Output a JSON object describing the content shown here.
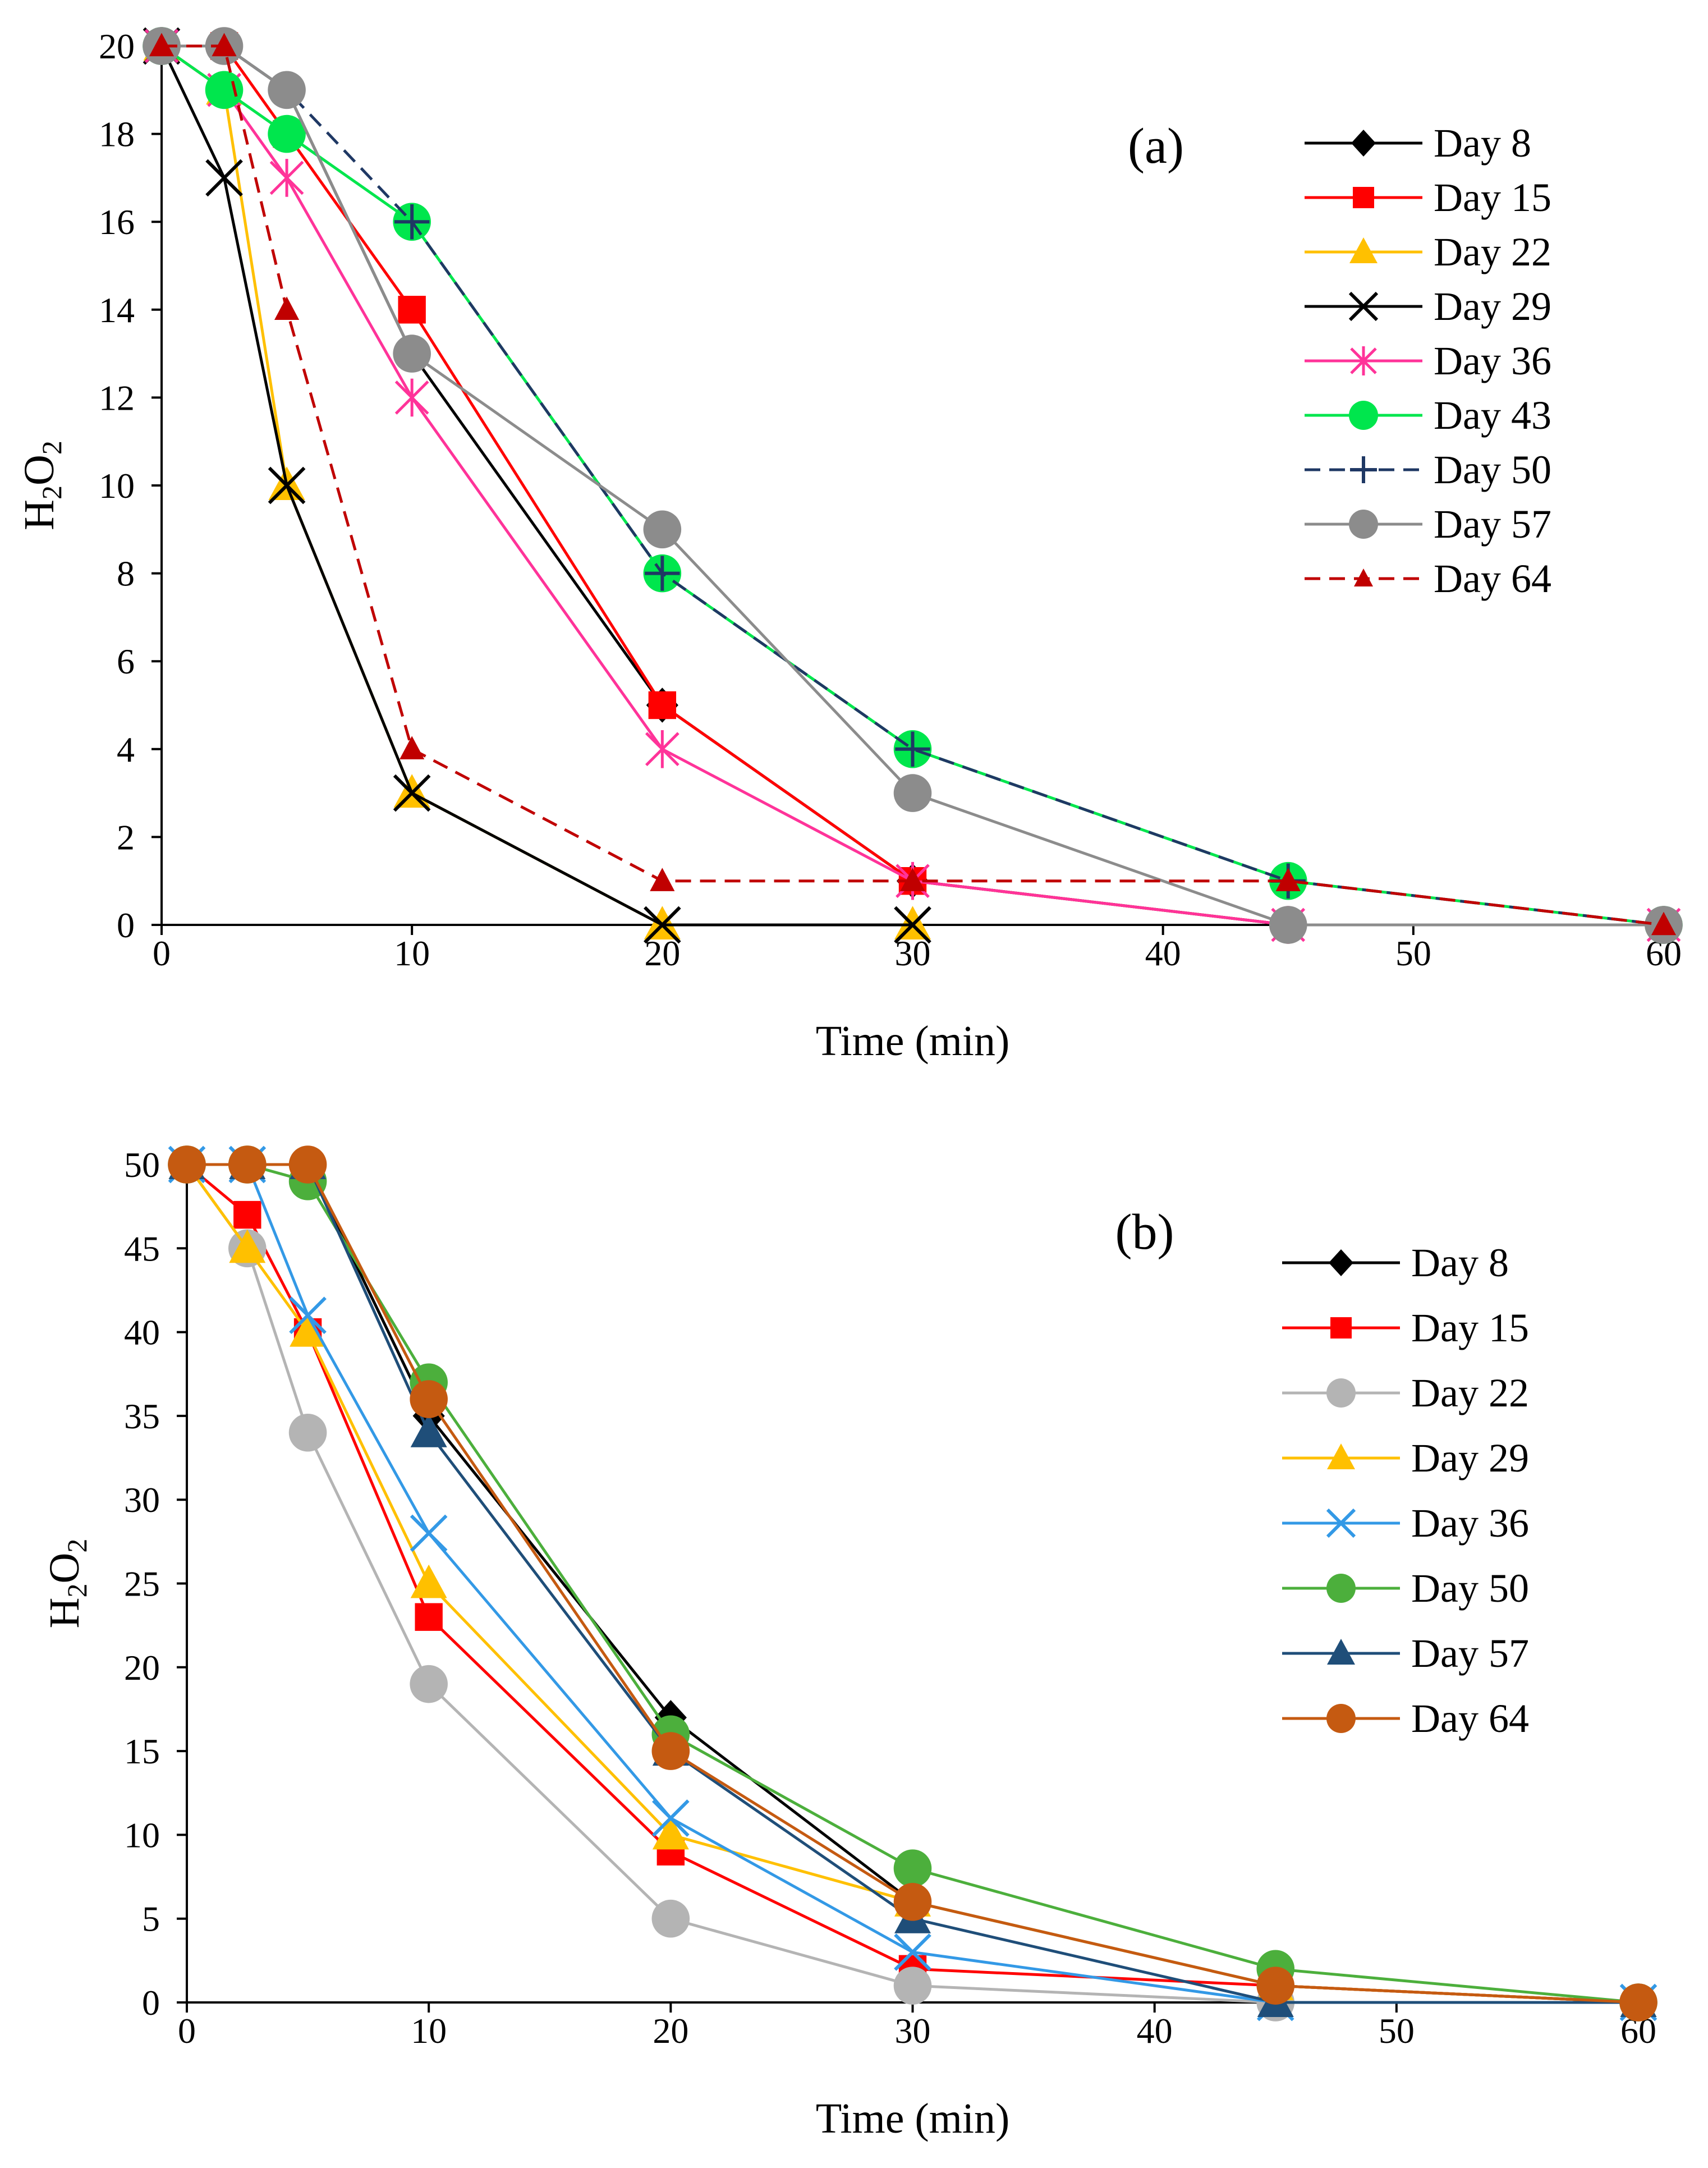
{
  "colors": {
    "black": "#000000",
    "red": "#ff0000",
    "yellow": "#ffc000",
    "pink": "#ff3399",
    "green": "#00e64d",
    "navy": "#1f3864",
    "gray": "#8c8c8c",
    "darkred": "#c00000",
    "lightgray": "#b4b4b4",
    "skyblue": "#3399e6",
    "midgreen": "#4caf3c",
    "darkblue": "#1f4e79",
    "brown": "#c55a11"
  },
  "chart_data": [
    {
      "type": "line",
      "panel_label": "(a)",
      "title": "",
      "xlabel": "Time (min)",
      "ylabel_main": "H",
      "ylabel_sub1": "2",
      "ylabel_mid": "O",
      "ylabel_sub2": "2",
      "xlim": [
        0,
        60
      ],
      "ylim": [
        0,
        20
      ],
      "xticks": [
        "0",
        "10",
        "20",
        "30",
        "40",
        "50",
        "60"
      ],
      "yticks": [
        "0",
        "2",
        "4",
        "6",
        "8",
        "10",
        "12",
        "14",
        "16",
        "18",
        "20"
      ],
      "legend_position": "top-right",
      "series": [
        {
          "name": "Day 8",
          "color": "#000000",
          "marker": "diamond",
          "dash": false,
          "x": [
            0,
            2.5,
            5,
            10,
            20,
            30,
            45,
            60
          ],
          "y": [
            20,
            20,
            19,
            13,
            5,
            1,
            0,
            0
          ]
        },
        {
          "name": "Day 15",
          "color": "#ff0000",
          "marker": "square",
          "dash": false,
          "x": [
            0,
            2.5,
            5,
            10,
            20,
            30,
            45,
            60
          ],
          "y": [
            20,
            20,
            18,
            14,
            5,
            1,
            0,
            0
          ]
        },
        {
          "name": "Day 22",
          "color": "#ffc000",
          "marker": "triangle",
          "dash": false,
          "x": [
            0,
            2.5,
            5,
            10,
            20,
            30
          ],
          "y": [
            20,
            19,
            10,
            3,
            0,
            0
          ]
        },
        {
          "name": "Day 29",
          "color": "#000000",
          "marker": "x",
          "dash": false,
          "x": [
            0,
            2.5,
            5,
            10,
            20,
            30
          ],
          "y": [
            20,
            17,
            10,
            3,
            0,
            0
          ]
        },
        {
          "name": "Day 36",
          "color": "#ff3399",
          "marker": "star",
          "dash": false,
          "x": [
            0,
            2.5,
            5,
            10,
            20,
            30,
            45,
            60
          ],
          "y": [
            20,
            19,
            17,
            12,
            4,
            1,
            0,
            0
          ]
        },
        {
          "name": "Day 43",
          "color": "#00e64d",
          "marker": "circle",
          "dash": false,
          "x": [
            0,
            2.5,
            5,
            10,
            20,
            30,
            45,
            60
          ],
          "y": [
            20,
            19,
            18,
            16,
            8,
            4,
            1,
            0
          ]
        },
        {
          "name": "Day 50",
          "color": "#1f3864",
          "marker": "plus",
          "dash": true,
          "x": [
            0,
            2.5,
            5,
            10,
            20,
            30,
            45,
            60
          ],
          "y": [
            20,
            20,
            19,
            16,
            8,
            4,
            1,
            0
          ]
        },
        {
          "name": "Day 57",
          "color": "#8c8c8c",
          "marker": "circle",
          "dash": false,
          "x": [
            0,
            2.5,
            5,
            10,
            20,
            30,
            45,
            60
          ],
          "y": [
            20,
            20,
            19,
            13,
            9,
            3,
            0,
            0
          ]
        },
        {
          "name": "Day 64",
          "color": "#c00000",
          "marker": "small-triangle",
          "dash": true,
          "x": [
            0,
            2.5,
            5,
            10,
            20,
            30,
            45,
            60
          ],
          "y": [
            20,
            20,
            14,
            4,
            1,
            1,
            1,
            0
          ]
        }
      ]
    },
    {
      "type": "line",
      "panel_label": "(b)",
      "title": "",
      "xlabel": "Time (min)",
      "ylabel_main": "H",
      "ylabel_sub1": "2",
      "ylabel_mid": "O",
      "ylabel_sub2": "2",
      "xlim": [
        0,
        60
      ],
      "ylim": [
        0,
        50
      ],
      "xticks": [
        "0",
        "10",
        "20",
        "30",
        "40",
        "50",
        "60"
      ],
      "yticks": [
        "0",
        "5",
        "10",
        "15",
        "20",
        "25",
        "30",
        "35",
        "40",
        "45",
        "50"
      ],
      "legend_position": "right",
      "series": [
        {
          "name": "Day 8",
          "color": "#000000",
          "marker": "diamond",
          "dash": false,
          "x": [
            0,
            2.5,
            5,
            10,
            20,
            30,
            45,
            60
          ],
          "y": [
            50,
            50,
            50,
            35,
            17,
            6,
            1,
            0
          ]
        },
        {
          "name": "Day 15",
          "color": "#ff0000",
          "marker": "square",
          "dash": false,
          "x": [
            0,
            2.5,
            5,
            10,
            20,
            30,
            45,
            60
          ],
          "y": [
            50,
            47,
            40,
            23,
            9,
            2,
            1,
            0
          ]
        },
        {
          "name": "Day 22",
          "color": "#b4b4b4",
          "marker": "circle",
          "dash": false,
          "x": [
            0,
            2.5,
            5,
            10,
            20,
            30,
            45,
            60
          ],
          "y": [
            50,
            45,
            34,
            19,
            5,
            1,
            0,
            0
          ]
        },
        {
          "name": "Day 29",
          "color": "#ffc000",
          "marker": "triangle",
          "dash": false,
          "x": [
            0,
            2.5,
            5,
            10,
            20,
            30,
            45,
            60
          ],
          "y": [
            50,
            45,
            40,
            25,
            10,
            6,
            1,
            0
          ]
        },
        {
          "name": "Day 36",
          "color": "#3399e6",
          "marker": "x",
          "dash": false,
          "x": [
            0,
            2.5,
            5,
            10,
            20,
            30,
            45,
            60
          ],
          "y": [
            50,
            50,
            41,
            28,
            11,
            3,
            0,
            0
          ]
        },
        {
          "name": "Day 50",
          "color": "#4caf3c",
          "marker": "circle",
          "dash": false,
          "x": [
            0,
            2.5,
            5,
            10,
            20,
            30,
            45,
            60
          ],
          "y": [
            50,
            50,
            49,
            37,
            16,
            8,
            2,
            0
          ]
        },
        {
          "name": "Day 57",
          "color": "#1f4e79",
          "marker": "triangle",
          "dash": false,
          "x": [
            0,
            2.5,
            5,
            10,
            20,
            30,
            45,
            60
          ],
          "y": [
            50,
            50,
            50,
            34,
            15,
            5,
            0,
            0
          ]
        },
        {
          "name": "Day 64",
          "color": "#c55a11",
          "marker": "circle",
          "dash": false,
          "x": [
            0,
            2.5,
            5,
            10,
            20,
            30,
            45,
            60
          ],
          "y": [
            50,
            50,
            50,
            36,
            15,
            6,
            1,
            0
          ]
        }
      ]
    }
  ]
}
